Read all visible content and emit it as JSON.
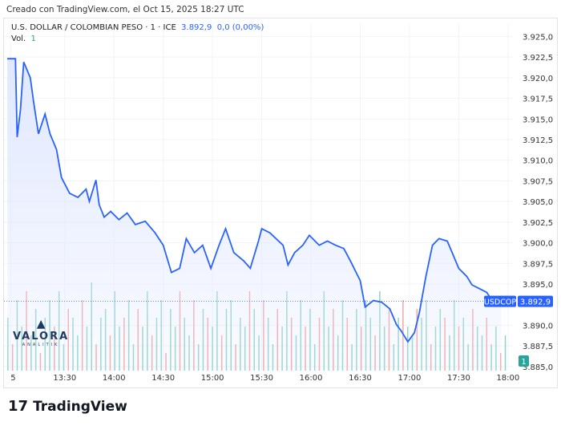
{
  "header": {
    "created": "Creado con TradingView.com, el Oct 15, 2025 18:27 UTC"
  },
  "legend": {
    "symbol": "U.S. DOLLAR / COLOMBIAN PESO · 1 · ICE",
    "price": "3.892,9",
    "change": "0,0 (0,00%)",
    "vol_label": "Vol.",
    "vol_value": "1"
  },
  "watermark": {
    "name": "VALORA",
    "sub": "ANALITIK"
  },
  "footer": {
    "brand": "TradingView",
    "logo": "17"
  },
  "colors": {
    "line": "#2962ff",
    "fill": "#dfe7ff",
    "vol_up": "#8fd3c9",
    "vol_down": "#f3a6a6",
    "price_label": "#2962ff",
    "vol_badge": "#26a69a"
  },
  "chart_data": {
    "type": "area",
    "symbol_label": "USDCOP",
    "last_price_label": "3.892,9",
    "last_price": 3892.9,
    "volume_badge": "1",
    "ylim": [
      3884.5,
      3926.5
    ],
    "y_ticks": [
      "3.925,0",
      "3.922,5",
      "3.920,0",
      "3.917,5",
      "3.915,0",
      "3.912,5",
      "3.910,0",
      "3.907,5",
      "3.905,0",
      "3.902,5",
      "3.900,0",
      "3.897,5",
      "3.895,0",
      "3.890,0",
      "3.887,5",
      "3.885,0"
    ],
    "y_tick_values": [
      3925,
      3922.5,
      3920,
      3917.5,
      3915,
      3912.5,
      3910,
      3907.5,
      3905,
      3902.5,
      3900,
      3897.5,
      3895,
      3890,
      3887.5,
      3885
    ],
    "x_ticks": [
      "5",
      "13:30",
      "14:00",
      "14:30",
      "15:00",
      "15:30",
      "16:00",
      "16:30",
      "17:00",
      "17:30",
      "18:00"
    ],
    "x_tick_times": [
      "12:57",
      "13:30",
      "14:00",
      "14:30",
      "15:00",
      "15:30",
      "16:00",
      "16:30",
      "17:00",
      "17:30",
      "18:00"
    ],
    "xlim": [
      "12:53",
      "18:03"
    ],
    "points": [
      [
        "12:55",
        3922.3
      ],
      [
        "13:00",
        3922.3
      ],
      [
        "13:01",
        3912.8
      ],
      [
        "13:03",
        3916.1
      ],
      [
        "13:05",
        3921.9
      ],
      [
        "13:09",
        3920.0
      ],
      [
        "13:11",
        3917.1
      ],
      [
        "13:14",
        3913.2
      ],
      [
        "13:18",
        3915.6
      ],
      [
        "13:21",
        3913.2
      ],
      [
        "13:25",
        3911.3
      ],
      [
        "13:28",
        3907.9
      ],
      [
        "13:33",
        3906.0
      ],
      [
        "13:38",
        3905.5
      ],
      [
        "13:43",
        3906.5
      ],
      [
        "13:45",
        3905.0
      ],
      [
        "13:49",
        3907.6
      ],
      [
        "13:51",
        3904.6
      ],
      [
        "13:54",
        3903.1
      ],
      [
        "13:58",
        3903.8
      ],
      [
        "14:03",
        3902.8
      ],
      [
        "14:08",
        3903.6
      ],
      [
        "14:13",
        3902.2
      ],
      [
        "14:19",
        3902.6
      ],
      [
        "14:25",
        3901.2
      ],
      [
        "14:30",
        3899.7
      ],
      [
        "14:35",
        3896.4
      ],
      [
        "14:40",
        3896.9
      ],
      [
        "14:44",
        3900.5
      ],
      [
        "14:49",
        3898.8
      ],
      [
        "14:54",
        3899.7
      ],
      [
        "14:59",
        3896.9
      ],
      [
        "15:04",
        3899.7
      ],
      [
        "15:08",
        3901.7
      ],
      [
        "15:13",
        3898.8
      ],
      [
        "15:19",
        3897.8
      ],
      [
        "15:23",
        3896.9
      ],
      [
        "15:28",
        3900.2
      ],
      [
        "15:30",
        3901.7
      ],
      [
        "15:35",
        3901.2
      ],
      [
        "15:43",
        3899.7
      ],
      [
        "15:46",
        3897.3
      ],
      [
        "15:50",
        3898.8
      ],
      [
        "15:55",
        3899.7
      ],
      [
        "15:59",
        3900.9
      ],
      [
        "16:05",
        3899.7
      ],
      [
        "16:10",
        3900.2
      ],
      [
        "16:15",
        3899.7
      ],
      [
        "16:20",
        3899.3
      ],
      [
        "16:24",
        3897.8
      ],
      [
        "16:30",
        3895.4
      ],
      [
        "16:33",
        3892.2
      ],
      [
        "16:38",
        3893.0
      ],
      [
        "16:43",
        3892.8
      ],
      [
        "16:48",
        3892.0
      ],
      [
        "16:52",
        3890.1
      ],
      [
        "16:55",
        3889.3
      ],
      [
        "16:59",
        3888.0
      ],
      [
        "17:03",
        3889.1
      ],
      [
        "17:06",
        3891.5
      ],
      [
        "17:10",
        3895.9
      ],
      [
        "17:14",
        3899.7
      ],
      [
        "17:18",
        3900.5
      ],
      [
        "17:23",
        3900.2
      ],
      [
        "17:26",
        3898.8
      ],
      [
        "17:30",
        3896.9
      ],
      [
        "17:35",
        3895.9
      ],
      [
        "17:38",
        3894.9
      ],
      [
        "17:43",
        3894.4
      ],
      [
        "17:47",
        3894.0
      ],
      [
        "17:51",
        3892.8
      ],
      [
        "17:56",
        3892.9
      ]
    ],
    "volume": [
      0.6,
      0.3,
      0.8,
      0.5,
      0.9,
      0.4,
      0.7,
      0.2,
      0.6,
      0.8,
      0.5,
      0.9,
      0.3,
      0.7,
      0.6,
      0.4,
      0.8,
      0.5,
      1.0,
      0.3,
      0.6,
      0.7,
      0.4,
      0.9,
      0.5,
      0.6,
      0.8,
      0.3,
      0.7,
      0.5,
      0.9,
      0.4,
      0.6,
      0.8,
      0.2,
      0.7,
      0.5,
      0.9,
      0.6,
      0.4,
      0.8,
      0.3,
      0.7,
      0.6,
      0.5,
      0.9,
      0.4,
      0.7,
      0.8,
      0.3,
      0.6,
      0.5,
      0.9,
      0.7,
      0.4,
      0.8,
      0.6,
      0.3,
      0.7,
      0.5,
      0.9,
      0.6,
      0.4,
      0.8,
      0.5,
      0.7,
      0.3,
      0.6,
      0.9,
      0.5,
      0.7,
      0.4,
      0.8,
      0.6,
      0.3,
      0.7,
      0.5,
      0.8,
      0.6,
      0.4,
      0.9,
      0.5,
      0.7,
      0.3,
      0.6,
      0.8,
      0.5,
      0.4,
      0.7,
      0.6,
      0.8,
      0.3,
      0.5,
      0.7,
      0.6,
      0.4,
      0.8,
      0.5,
      0.6,
      0.3,
      0.7,
      0.5,
      0.4,
      0.6,
      0.3,
      0.5,
      0.2,
      0.4
    ]
  }
}
